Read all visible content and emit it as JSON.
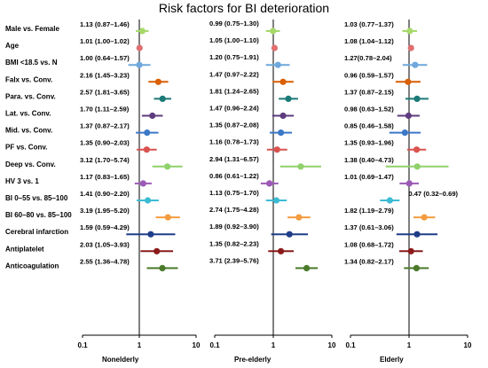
{
  "chart_data": {
    "type": "forest",
    "title": "Risk factors for BI deterioration",
    "x_scale": "log",
    "xlim": [
      0.1,
      10
    ],
    "x_ticks": [
      "0.1",
      "1",
      "10"
    ],
    "reference_line": 1,
    "row_labels": [
      "Male vs. Female",
      "Age",
      "BMI <18.5 vs. N",
      "Falx vs. Conv.",
      "Para. vs. Conv.",
      "Lat. vs. Conv.",
      "Mid. vs. Conv.",
      "PF vs. Conv.",
      "Deep vs. Conv.",
      "HV 3 vs. 1",
      "BI 0–55 vs. 85–100",
      "BI 60–80 vs. 85–100",
      "Cerebral infarction",
      "Antiplatelet",
      "Anticoagulation"
    ],
    "row_colors": [
      "#a6d96a",
      "#e07070",
      "#6fa8dc",
      "#d95f02",
      "#1b7a78",
      "#5e3c7f",
      "#3d78c8",
      "#d9534f",
      "#8fd16a",
      "#9b59b6",
      "#3cbcd4",
      "#f39c40",
      "#1f3c88",
      "#8b1a1a",
      "#4a7a2a"
    ],
    "panels": [
      {
        "name": "Nonelderly",
        "rows": [
          {
            "est": 1.13,
            "lo": 0.87,
            "hi": 1.46,
            "text": "1.13 (0.87–1.46)"
          },
          {
            "est": 1.01,
            "lo": 1.0,
            "hi": 1.02,
            "text": "1.01 (1.00–1.02)"
          },
          {
            "est": 1.0,
            "lo": 0.64,
            "hi": 1.57,
            "text": "1.00 (0.64–1.57)"
          },
          {
            "est": 2.16,
            "lo": 1.45,
            "hi": 3.23,
            "text": "2.16 (1.45–3.23)"
          },
          {
            "est": 2.57,
            "lo": 1.81,
            "hi": 3.65,
            "text": "2.57 (1.81–3.65)"
          },
          {
            "est": 1.7,
            "lo": 1.11,
            "hi": 2.59,
            "text": "1.70 (1.11–2.59)"
          },
          {
            "est": 1.37,
            "lo": 0.87,
            "hi": 2.17,
            "text": "1.37 (0.87–2.17)"
          },
          {
            "est": 1.35,
            "lo": 0.9,
            "hi": 2.03,
            "text": "1.35 (0.90–2.03)"
          },
          {
            "est": 3.12,
            "lo": 1.7,
            "hi": 5.74,
            "text": "3.12 (1.70–5.74)"
          },
          {
            "est": 1.17,
            "lo": 0.83,
            "hi": 1.65,
            "text": "1.17 (0.83–1.65)"
          },
          {
            "est": 1.41,
            "lo": 0.9,
            "hi": 2.2,
            "text": "1.41 (0.90–2.20)"
          },
          {
            "est": 3.19,
            "lo": 1.95,
            "hi": 5.2,
            "text": "3.19 (1.95–5.20)"
          },
          {
            "est": 1.59,
            "lo": 0.59,
            "hi": 4.29,
            "text": "1.59 (0.59–4.29)"
          },
          {
            "est": 2.03,
            "lo": 1.05,
            "hi": 3.93,
            "text": "2.03 (1.05–3.93)"
          },
          {
            "est": 2.55,
            "lo": 1.36,
            "hi": 4.78,
            "text": "2.55 (1.36–4.78)"
          }
        ]
      },
      {
        "name": "Pre-elderly",
        "rows": [
          {
            "est": 0.99,
            "lo": 0.75,
            "hi": 1.3,
            "text": "0.99 (0.75–1.30)"
          },
          {
            "est": 1.05,
            "lo": 1.0,
            "hi": 1.1,
            "text": "1.05 (1.00–1.10)"
          },
          {
            "est": 1.2,
            "lo": 0.75,
            "hi": 1.91,
            "text": "1.20 (0.75–1.91)"
          },
          {
            "est": 1.47,
            "lo": 0.97,
            "hi": 2.22,
            "text": "1.47 (0.97–2.22)"
          },
          {
            "est": 1.81,
            "lo": 1.24,
            "hi": 2.65,
            "text": "1.81 (1.24–2.65)"
          },
          {
            "est": 1.47,
            "lo": 0.96,
            "hi": 2.24,
            "text": "1.47 (0.96–2.24)"
          },
          {
            "est": 1.35,
            "lo": 0.87,
            "hi": 2.08,
            "text": "1.35 (0.87–2.08)"
          },
          {
            "est": 1.16,
            "lo": 0.78,
            "hi": 1.73,
            "text": "1.16 (0.78–1.73)"
          },
          {
            "est": 2.94,
            "lo": 1.31,
            "hi": 6.57,
            "text": "2.94 (1.31–6.57)"
          },
          {
            "est": 0.86,
            "lo": 0.61,
            "hi": 1.22,
            "text": "0.86 (0.61–1.22)"
          },
          {
            "est": 1.13,
            "lo": 0.75,
            "hi": 1.7,
            "text": "1.13 (0.75–1.70)"
          },
          {
            "est": 2.74,
            "lo": 1.75,
            "hi": 4.28,
            "text": "2.74 (1.75–4.28)"
          },
          {
            "est": 1.89,
            "lo": 0.92,
            "hi": 3.9,
            "text": "1.89 (0.92–3.90)"
          },
          {
            "est": 1.35,
            "lo": 0.82,
            "hi": 2.23,
            "text": "1.35 (0.82–2.23)"
          },
          {
            "est": 3.71,
            "lo": 2.39,
            "hi": 5.76,
            "text": "3.71 (2.39–5.76)"
          }
        ]
      },
      {
        "name": "Elderly",
        "rows": [
          {
            "est": 1.03,
            "lo": 0.77,
            "hi": 1.37,
            "text": "1.03 (0.77–1.37)"
          },
          {
            "est": 1.08,
            "lo": 1.04,
            "hi": 1.12,
            "text": "1.08 (1.04–1.12)"
          },
          {
            "est": 1.27,
            "lo": 0.78,
            "hi": 2.04,
            "text": "1.27(0.78–2.04)"
          },
          {
            "est": 0.96,
            "lo": 0.59,
            "hi": 1.57,
            "text": "0.96 (0.59–1.57)"
          },
          {
            "est": 1.37,
            "lo": 0.87,
            "hi": 2.15,
            "text": "1.37 (0.87–2.15)"
          },
          {
            "est": 0.98,
            "lo": 0.63,
            "hi": 1.52,
            "text": "0.98 (0.63–1.52)"
          },
          {
            "est": 0.85,
            "lo": 0.46,
            "hi": 1.58,
            "text": "0.85 (0.46–1.58)"
          },
          {
            "est": 1.35,
            "lo": 0.93,
            "hi": 1.96,
            "text": "1.35 (0.93–1.96)"
          },
          {
            "est": 1.38,
            "lo": 0.4,
            "hi": 4.73,
            "text": "1.38 (0.40–4.73)"
          },
          {
            "est": 1.01,
            "lo": 0.69,
            "hi": 1.47,
            "text": "1.01 (0.69–1.47)"
          },
          {
            "est": 0.47,
            "lo": 0.32,
            "hi": 0.69,
            "text": "0.47 (0.32–0.69)"
          },
          {
            "est": 1.82,
            "lo": 1.19,
            "hi": 2.79,
            "text": "1.82 (1.19–2.79)"
          },
          {
            "est": 1.37,
            "lo": 0.61,
            "hi": 3.06,
            "text": "1.37 (0.61–3.06)"
          },
          {
            "est": 1.08,
            "lo": 0.68,
            "hi": 1.72,
            "text": "1.08 (0.68–1.72)"
          },
          {
            "est": 1.34,
            "lo": 0.82,
            "hi": 2.17,
            "text": "1.34 (0.82–2.17)"
          }
        ]
      }
    ]
  }
}
